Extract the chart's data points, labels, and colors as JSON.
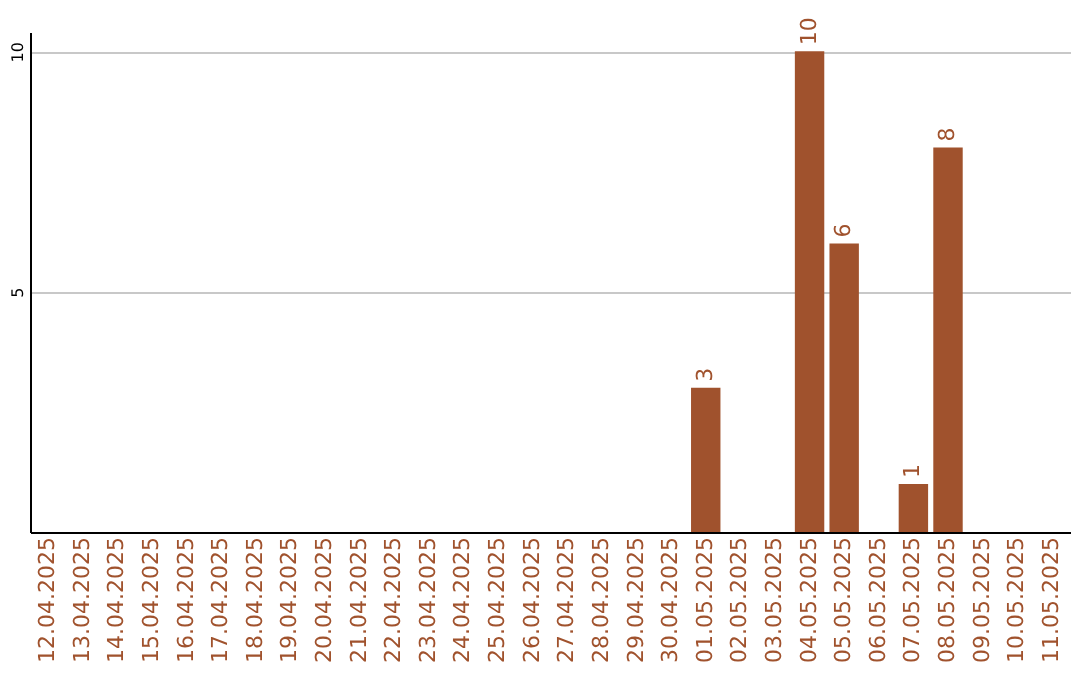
{
  "chart_data": {
    "type": "bar",
    "categories": [
      "12.04.2025",
      "13.04.2025",
      "14.04.2025",
      "15.04.2025",
      "16.04.2025",
      "17.04.2025",
      "18.04.2025",
      "19.04.2025",
      "20.04.2025",
      "21.04.2025",
      "22.04.2025",
      "23.04.2025",
      "24.04.2025",
      "25.04.2025",
      "26.04.2025",
      "27.04.2025",
      "28.04.2025",
      "29.04.2025",
      "30.04.2025",
      "01.05.2025",
      "02.05.2025",
      "03.05.2025",
      "04.05.2025",
      "05.05.2025",
      "06.05.2025",
      "07.05.2025",
      "08.05.2025",
      "09.05.2025",
      "10.05.2025",
      "11.05.2025"
    ],
    "values": [
      0,
      0,
      0,
      0,
      0,
      0,
      0,
      0,
      0,
      0,
      0,
      0,
      0,
      0,
      0,
      0,
      0,
      0,
      0,
      3,
      0,
      0,
      10,
      6,
      0,
      1,
      8,
      0,
      0,
      0
    ],
    "value_labels": [
      null,
      null,
      null,
      null,
      null,
      null,
      null,
      null,
      null,
      null,
      null,
      null,
      null,
      null,
      null,
      null,
      null,
      null,
      null,
      "3",
      null,
      null,
      "10",
      "6",
      null,
      "1",
      "8",
      null,
      null,
      null
    ],
    "color": "#a0522d",
    "ylim": [
      0,
      10.4
    ],
    "yticks": [
      5,
      10
    ],
    "grid": "y"
  }
}
